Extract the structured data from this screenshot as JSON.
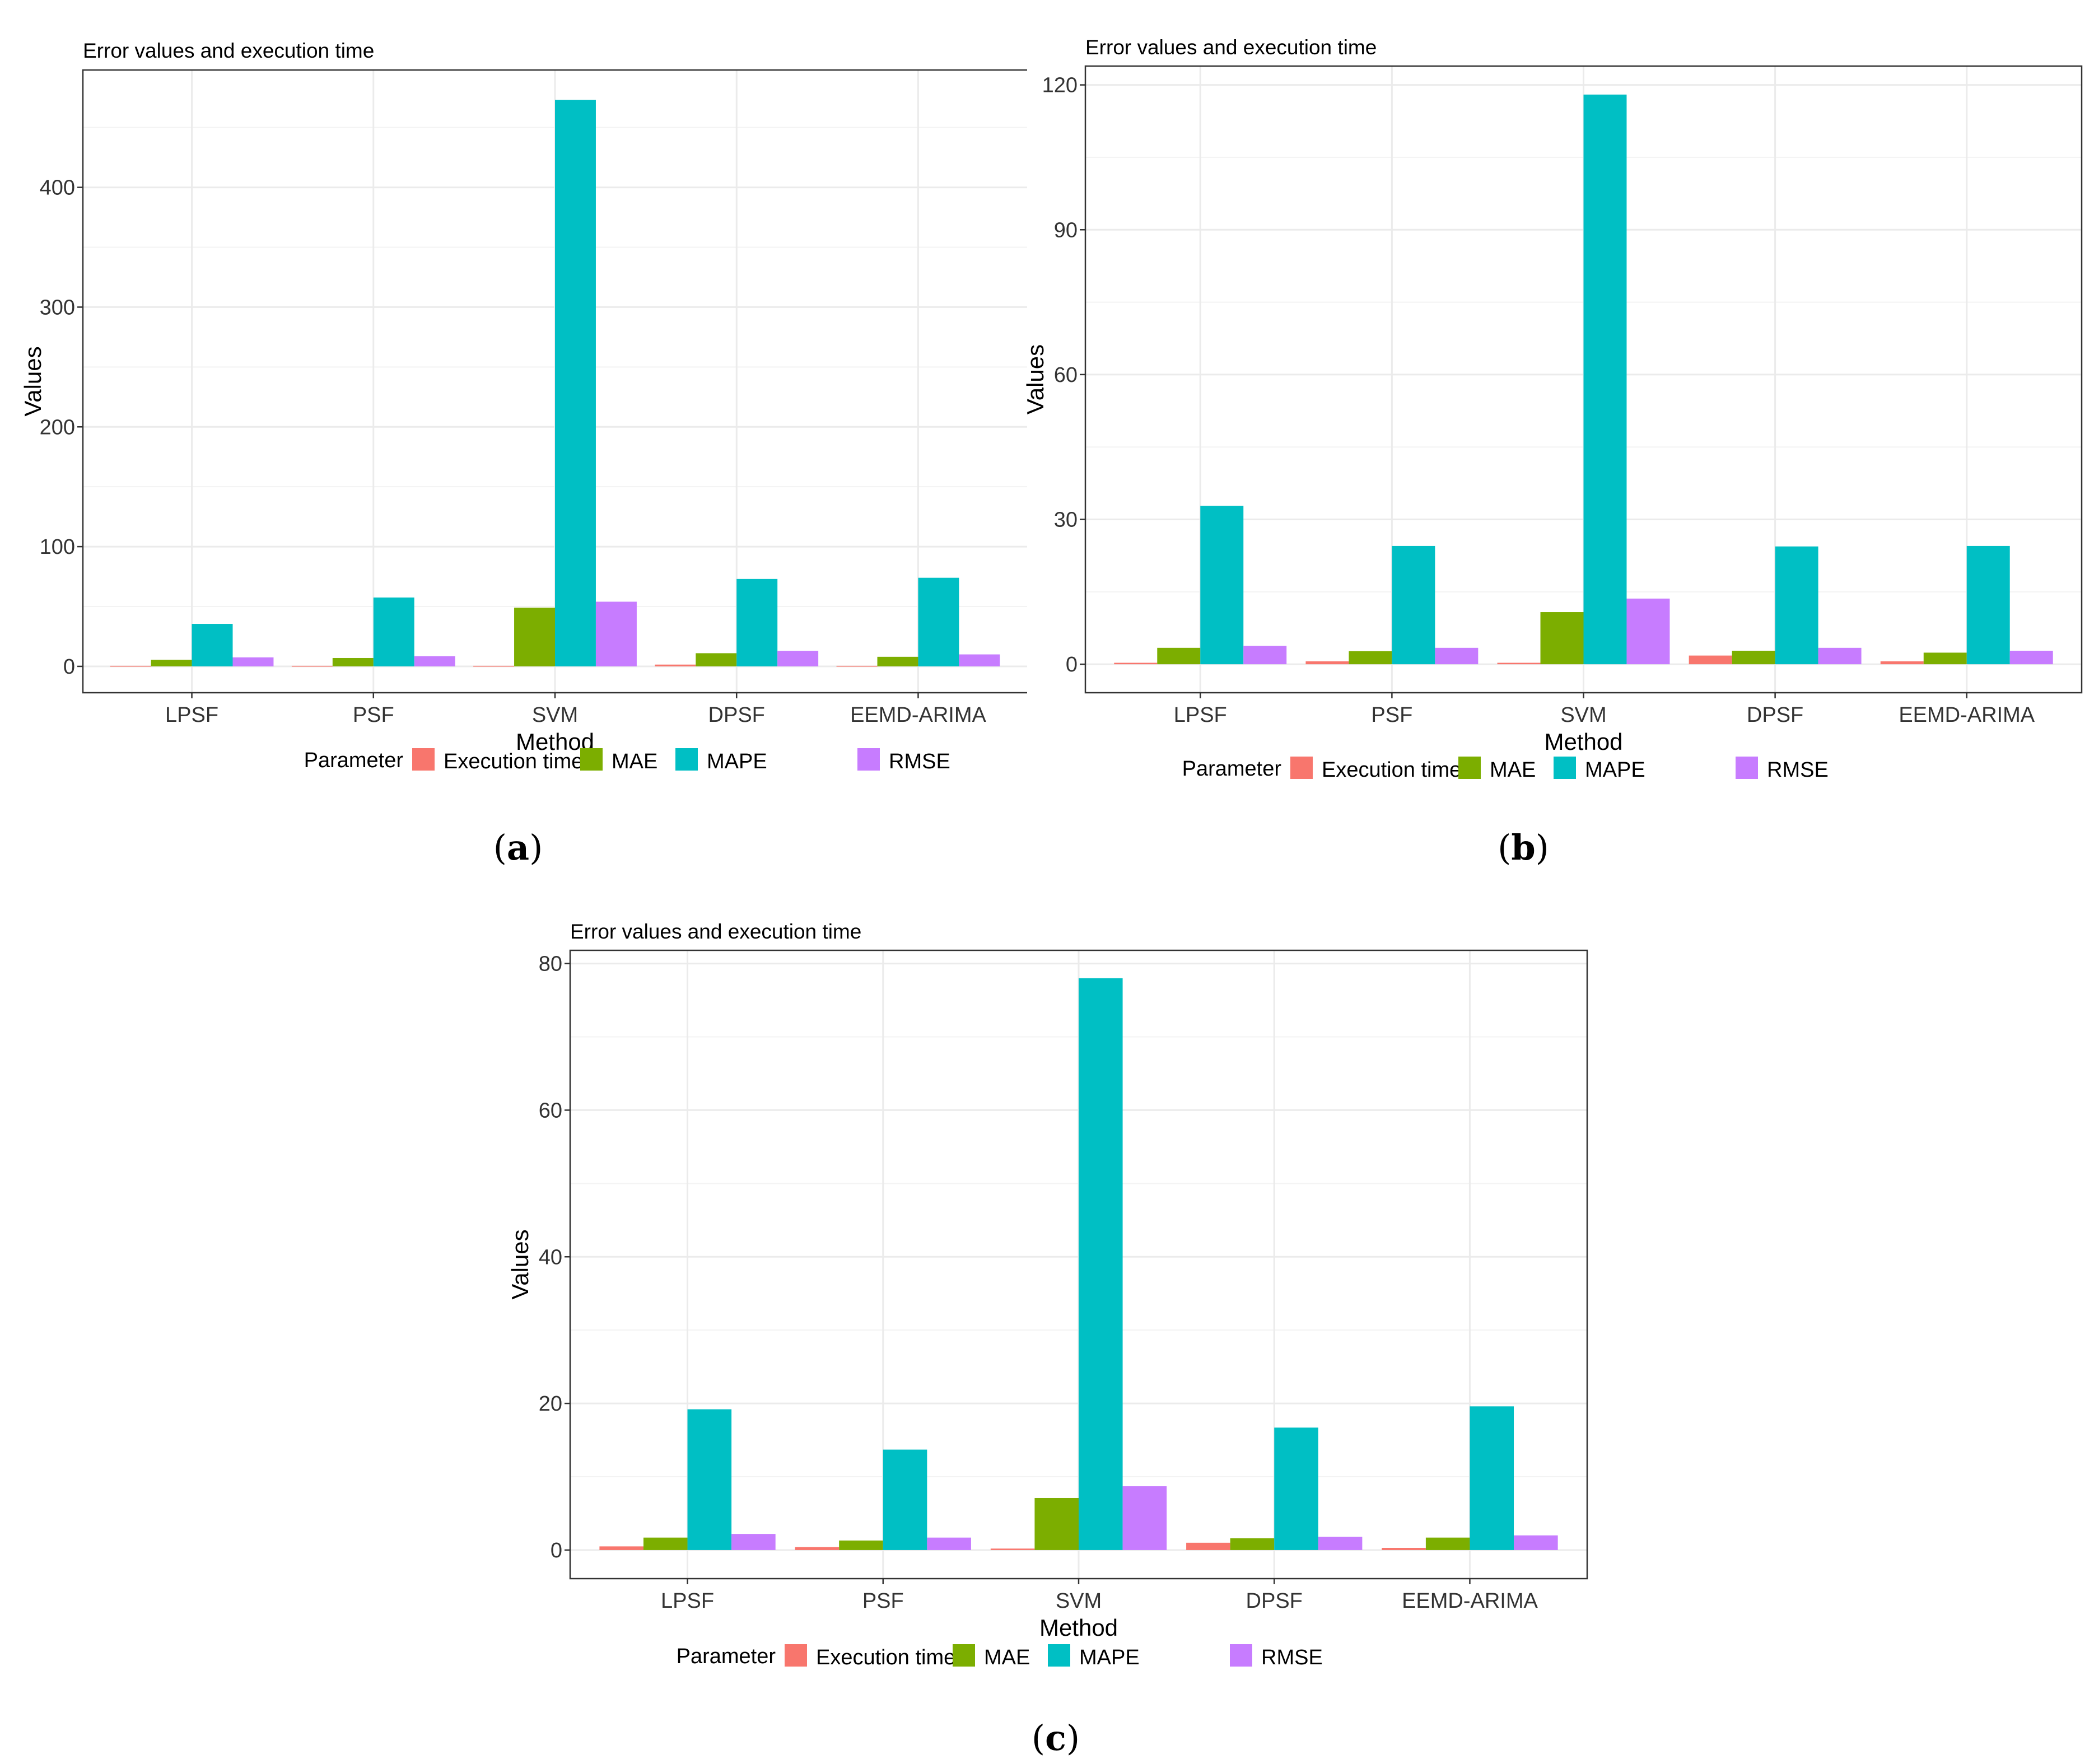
{
  "series_colors": {
    "Execution time": "#F8766D",
    "MAE": "#7CAE00",
    "MAPE": "#00BFC4",
    "RMSE": "#C77CFF"
  },
  "legend": {
    "title": "Parameter",
    "entries": [
      "Execution time",
      "MAE",
      "MAPE",
      "RMSE"
    ]
  },
  "chart_data": [
    {
      "id": "a",
      "caption": "a",
      "type": "bar",
      "title": "Error values and execution time",
      "xlabel": "Method",
      "ylabel": "Values",
      "categories": [
        "LPSF",
        "PSF",
        "SVM",
        "DPSF",
        "EEMD-ARIMA"
      ],
      "ylim": [
        -22,
        498
      ],
      "yticks": [
        0,
        100,
        200,
        300,
        400
      ],
      "series": [
        {
          "name": "Execution time",
          "values": [
            0.5,
            0.5,
            0.5,
            1.5,
            0.5
          ]
        },
        {
          "name": "MAE",
          "values": [
            5.5,
            7,
            49,
            11,
            8
          ]
        },
        {
          "name": "MAPE",
          "values": [
            35.5,
            57.5,
            473,
            73,
            74
          ]
        },
        {
          "name": "RMSE",
          "values": [
            7.5,
            8.5,
            54,
            13,
            10
          ]
        }
      ]
    },
    {
      "id": "b",
      "caption": "b",
      "type": "bar",
      "title": "Error values and execution time",
      "xlabel": "Method",
      "ylabel": "Values",
      "categories": [
        "LPSF",
        "PSF",
        "SVM",
        "DPSF",
        "EEMD-ARIMA"
      ],
      "ylim": [
        -5.9,
        123.9
      ],
      "yticks": [
        0,
        30,
        60,
        90,
        120
      ],
      "series": [
        {
          "name": "Execution time",
          "values": [
            0.3,
            0.6,
            0.3,
            1.8,
            0.6
          ]
        },
        {
          "name": "MAE",
          "values": [
            3.4,
            2.7,
            10.8,
            2.8,
            2.4
          ]
        },
        {
          "name": "MAPE",
          "values": [
            32.8,
            24.5,
            118,
            24.4,
            24.5
          ]
        },
        {
          "name": "RMSE",
          "values": [
            3.8,
            3.4,
            13.6,
            3.4,
            2.8
          ]
        }
      ]
    },
    {
      "id": "c",
      "caption": "c",
      "type": "bar",
      "title": "Error values and execution time",
      "xlabel": "Method",
      "ylabel": "Values",
      "categories": [
        "LPSF",
        "PSF",
        "SVM",
        "DPSF",
        "EEMD-ARIMA"
      ],
      "ylim": [
        -3.9,
        81.8
      ],
      "yticks": [
        0,
        20,
        40,
        60,
        80
      ],
      "series": [
        {
          "name": "Execution time",
          "values": [
            0.5,
            0.4,
            0.2,
            1.0,
            0.3
          ]
        },
        {
          "name": "MAE",
          "values": [
            1.7,
            1.3,
            7.1,
            1.6,
            1.7
          ]
        },
        {
          "name": "MAPE",
          "values": [
            19.2,
            13.7,
            78,
            16.7,
            19.6
          ]
        },
        {
          "name": "RMSE",
          "values": [
            2.2,
            1.7,
            8.7,
            1.8,
            2.0
          ]
        }
      ]
    }
  ]
}
